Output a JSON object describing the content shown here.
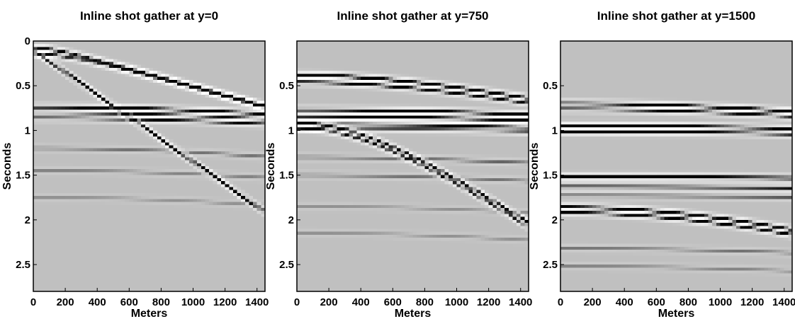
{
  "figure": {
    "background": "#ffffff",
    "section_background": "#c0c0c0",
    "event_dark": "#000000",
    "event_light": "#ffffff"
  },
  "chart_data": [
    {
      "type": "heatmap",
      "title": "Inline shot gather at y=0",
      "xlabel": "Meters",
      "ylabel": "Seconds",
      "xlim": [
        0,
        1450
      ],
      "ylim": [
        2.8,
        0
      ],
      "xticks": [
        0,
        200,
        400,
        600,
        800,
        1000,
        1200,
        1400
      ],
      "yticks": [
        0,
        0.5,
        1,
        1.5,
        2,
        2.5
      ],
      "events": [
        {
          "kind": "hyperbola",
          "t0": 0.08,
          "v": 2000,
          "strength": 1.0
        },
        {
          "kind": "hyperbola",
          "t0": 0.14,
          "v": 2000,
          "strength": 0.9
        },
        {
          "kind": "line",
          "t0": 0.1,
          "slope": 0.00125,
          "strength": 1.0,
          "checker": true
        },
        {
          "kind": "hyperbola",
          "t0": 0.74,
          "v": 4200,
          "strength": 0.9
        },
        {
          "kind": "hyperbola",
          "t0": 0.8,
          "v": 4200,
          "strength": 0.8
        },
        {
          "kind": "hyperbola",
          "t0": 0.86,
          "v": 4200,
          "strength": 0.7
        },
        {
          "kind": "hyperbola",
          "t0": 1.2,
          "v": 3000,
          "strength": 0.25
        },
        {
          "kind": "hyperbola",
          "t0": 1.45,
          "v": 3000,
          "strength": 0.2
        },
        {
          "kind": "hyperbola",
          "t0": 1.75,
          "v": 2600,
          "strength": 0.15
        }
      ]
    },
    {
      "type": "heatmap",
      "title": "Inline shot gather at y=750",
      "xlabel": "Meters",
      "ylabel": "Seconds",
      "xlim": [
        0,
        1450
      ],
      "ylim": [
        2.8,
        0
      ],
      "xticks": [
        0,
        200,
        400,
        600,
        800,
        1000,
        1200,
        1400
      ],
      "yticks": [
        0.5,
        1,
        1.5,
        2,
        2.5
      ],
      "events": [
        {
          "kind": "hyperbola",
          "t0": 0.38,
          "v": 2800,
          "strength": 1.0
        },
        {
          "kind": "hyperbola",
          "t0": 0.46,
          "v": 2800,
          "strength": 0.8
        },
        {
          "kind": "hyperbola",
          "t0": 0.77,
          "v": 5000,
          "strength": 0.9
        },
        {
          "kind": "hyperbola",
          "t0": 0.84,
          "v": 5000,
          "strength": 0.8
        },
        {
          "kind": "hyperbola",
          "t0": 0.93,
          "v": 5200,
          "strength": 1.0
        },
        {
          "kind": "hyperbola",
          "t0": 0.97,
          "v": 5200,
          "strength": 0.8
        },
        {
          "kind": "hyperbola",
          "t0": 0.92,
          "v": 800,
          "strength": 1.0
        },
        {
          "kind": "hyperbola",
          "t0": 0.97,
          "v": 790,
          "strength": 0.9
        },
        {
          "kind": "hyperbola",
          "t0": 1.3,
          "v": 3500,
          "strength": 0.3
        },
        {
          "kind": "hyperbola",
          "t0": 1.5,
          "v": 3200,
          "strength": 0.25
        },
        {
          "kind": "hyperbola",
          "t0": 1.85,
          "v": 2800,
          "strength": 0.15
        },
        {
          "kind": "hyperbola",
          "t0": 2.15,
          "v": 2500,
          "strength": 0.15
        }
      ]
    },
    {
      "type": "heatmap",
      "title": "Inline shot gather at y=1500",
      "xlabel": "Meters",
      "ylabel": "Seconds",
      "xlim": [
        0,
        1450
      ],
      "ylim": [
        2.8,
        0
      ],
      "xticks": [
        0,
        200,
        400,
        600,
        800,
        1000,
        1200,
        1400
      ],
      "yticks": [
        0.5,
        1,
        1.5,
        2,
        2.5
      ],
      "events": [
        {
          "kind": "hyperbola",
          "t0": 0.7,
          "v": 4000,
          "strength": 1.0
        },
        {
          "kind": "hyperbola",
          "t0": 0.76,
          "v": 4000,
          "strength": 0.8
        },
        {
          "kind": "hyperbola",
          "t0": 0.95,
          "v": 6000,
          "strength": 1.0
        },
        {
          "kind": "hyperbola",
          "t0": 1.01,
          "v": 6000,
          "strength": 0.9
        },
        {
          "kind": "hyperbola",
          "t0": 1.52,
          "v": 7000,
          "strength": 0.9
        },
        {
          "kind": "hyperbola",
          "t0": 1.63,
          "v": 7000,
          "strength": 0.7
        },
        {
          "kind": "hyperbola",
          "t0": 1.73,
          "v": 6500,
          "strength": 0.4
        },
        {
          "kind": "hyperbola",
          "t0": 1.86,
          "v": 1450,
          "strength": 1.0
        },
        {
          "kind": "hyperbola",
          "t0": 1.92,
          "v": 1450,
          "strength": 0.9
        },
        {
          "kind": "hyperbola",
          "t0": 2.32,
          "v": 3000,
          "strength": 0.25
        },
        {
          "kind": "hyperbola",
          "t0": 2.52,
          "v": 2800,
          "strength": 0.2
        }
      ]
    }
  ]
}
